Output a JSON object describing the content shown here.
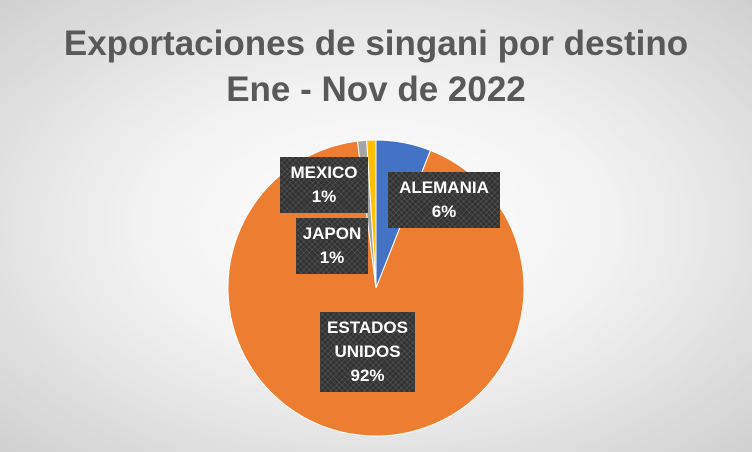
{
  "chart_data": {
    "type": "pie",
    "title": "Exportaciones de singani por destino",
    "subtitle": "Ene - Nov de 2022",
    "categories": [
      "ALEMANIA",
      "ESTADOS UNIDOS",
      "JAPON",
      "MEXICO"
    ],
    "values": [
      6,
      92,
      1,
      1
    ],
    "value_labels": [
      "6%",
      "92%",
      "1%",
      "1%"
    ],
    "colors": [
      "#4472c4",
      "#ed7d31",
      "#a5a5a5",
      "#ffc000"
    ]
  }
}
